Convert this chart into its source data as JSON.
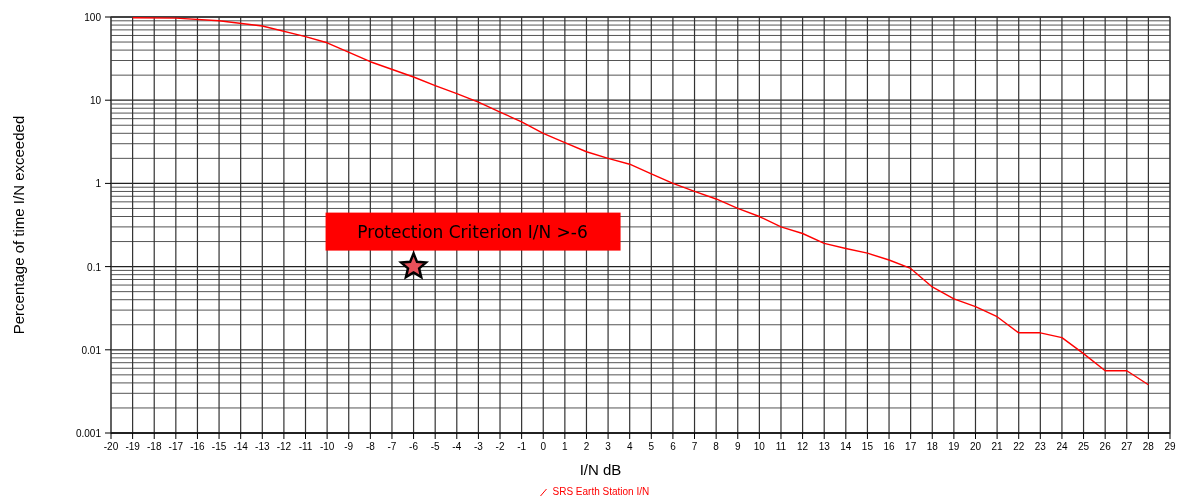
{
  "chart_data": {
    "type": "line",
    "xlabel": "I/N dB",
    "ylabel": "Percentage of time I/N exceeded",
    "log": "y",
    "grid": true,
    "legend": "bottom",
    "xlim": [
      -20,
      29
    ],
    "xticks": [
      -20,
      -19,
      -18,
      -17,
      -16,
      -15,
      -14,
      -13,
      -12,
      -11,
      -10,
      -9,
      -8,
      -7,
      -6,
      -5,
      -4,
      -3,
      -2,
      -1,
      0,
      1,
      2,
      3,
      4,
      5,
      6,
      7,
      8,
      9,
      10,
      11,
      12,
      13,
      14,
      15,
      16,
      17,
      18,
      19,
      20,
      21,
      22,
      23,
      24,
      25,
      26,
      27,
      28,
      29
    ],
    "ylim": [
      0.001,
      100
    ],
    "yticks": [
      0.001,
      0.01,
      0.1,
      1,
      10,
      100
    ],
    "series": [
      {
        "name": "SRS Earth Station I/N",
        "color": "#ff0000",
        "x": [
          -19,
          -17,
          -15,
          -13,
          -11,
          -10,
          -8,
          -6,
          -5,
          -4,
          -3,
          -2,
          -1,
          0,
          1,
          2,
          3,
          4,
          5,
          6,
          7,
          8,
          9,
          10,
          11,
          12,
          13,
          14,
          15,
          16,
          17,
          18,
          19,
          20,
          21,
          22,
          23,
          24,
          25,
          26,
          27,
          28
        ],
        "values": [
          98,
          97,
          90,
          78,
          58,
          49,
          29,
          19,
          15,
          12,
          9.5,
          7.2,
          5.5,
          4,
          3.1,
          2.4,
          2,
          1.7,
          1.3,
          1,
          0.8,
          0.65,
          0.5,
          0.4,
          0.3,
          0.25,
          0.19,
          0.165,
          0.145,
          0.12,
          0.095,
          0.057,
          0.041,
          0.033,
          0.025,
          0.016,
          0.016,
          0.014,
          0.009,
          0.0056,
          0.0056,
          0.0038
        ]
      },
      {
        "type": "scatter",
        "marker": "star",
        "color": "#e8505a",
        "x": [
          -6
        ],
        "values": [
          0.1
        ]
      }
    ],
    "annotations": [
      {
        "text": "Protection Criterion I/N >-6",
        "x": -6,
        "y": 0.1
      }
    ]
  }
}
